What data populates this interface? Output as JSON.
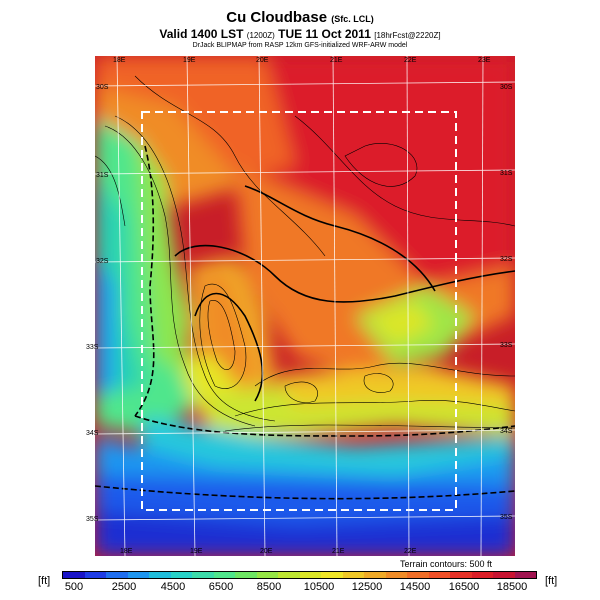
{
  "header": {
    "title": "Cu Cloudbase",
    "title_sub": "(Sfc. LCL)",
    "valid_main": "Valid 1400 LST",
    "valid_code": "(1200Z)",
    "valid_date": "TUE 11 Oct 2011",
    "valid_forecast": "[18hrFcst@2220Z]",
    "source": "DrJack BLIPMAP from RASP 12km GFS-initialized WRF-ARW model"
  },
  "map": {
    "top_lon_labels": [
      "18E",
      "19E",
      "20E",
      "21E",
      "22E",
      "23E"
    ],
    "bottom_lon_labels": [
      "18E",
      "19E",
      "20E",
      "21E",
      "22E"
    ],
    "left_lat_labels": [
      "30S",
      "31S",
      "32S",
      "33S",
      "34S",
      "35S"
    ],
    "right_lat_labels": [
      "30S",
      "31S",
      "32S",
      "33S",
      "34S",
      "35S"
    ],
    "terrain_note": "Terrain contours: 500 ft"
  },
  "colorbar": {
    "unit": "[ft]",
    "labels": [
      "500",
      "2500",
      "4500",
      "6500",
      "8500",
      "10500",
      "12500",
      "14500",
      "16500",
      "18500"
    ],
    "colors": [
      "#1a14c8",
      "#1e3ce6",
      "#1e6ef0",
      "#1e96f0",
      "#20bedc",
      "#28d2c8",
      "#3cdcaa",
      "#50e68c",
      "#6ee664",
      "#96e646",
      "#bee632",
      "#dce628",
      "#f0e628",
      "#f0c828",
      "#f0aa28",
      "#f08c28",
      "#f06e28",
      "#f05028",
      "#e63228",
      "#dc1e28",
      "#c81432",
      "#a01450"
    ]
  }
}
